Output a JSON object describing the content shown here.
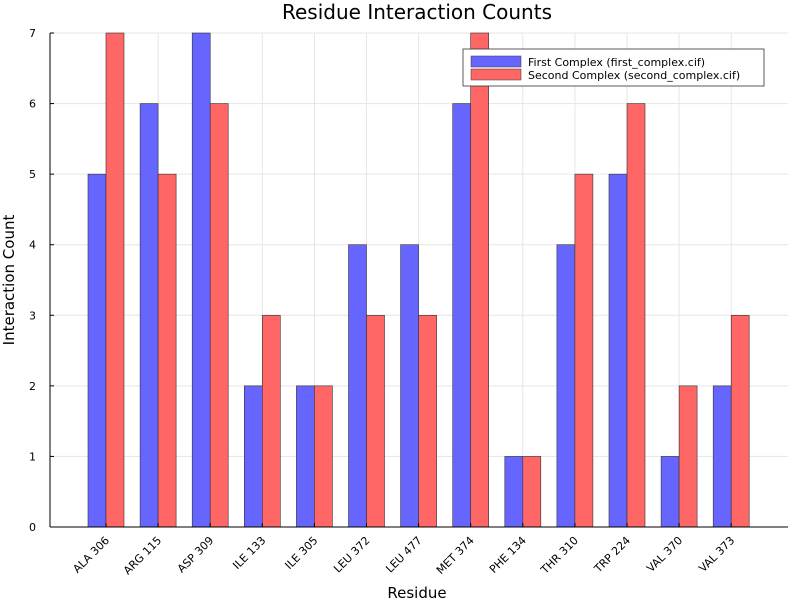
{
  "chart_data": {
    "type": "bar",
    "title": "Residue Interaction Counts",
    "xlabel": "Residue",
    "ylabel": "Interaction Count",
    "categories": [
      "ALA 306",
      "ARG 115",
      "ASP 309",
      "ILE 133",
      "ILE 305",
      "LEU 372",
      "LEU 477",
      "MET 374",
      "PHE 134",
      "THR 310",
      "TRP 224",
      "VAL 370",
      "VAL 373"
    ],
    "series": [
      {
        "name": "First Complex (first_complex.cif)",
        "color": "#6666ff",
        "values": [
          5,
          6,
          7,
          2,
          2,
          4,
          4,
          6,
          1,
          4,
          5,
          1,
          2
        ]
      },
      {
        "name": "Second Complex (second_complex.cif)",
        "color": "#ff6666",
        "values": [
          7,
          5,
          6,
          3,
          2,
          3,
          3,
          7,
          1,
          5,
          6,
          2,
          3
        ]
      }
    ],
    "ylim": [
      0,
      7
    ],
    "yticks": [
      "0",
      "1",
      "2",
      "3",
      "4",
      "5",
      "6",
      "7"
    ],
    "grid": true,
    "legend_position": "top-right"
  }
}
